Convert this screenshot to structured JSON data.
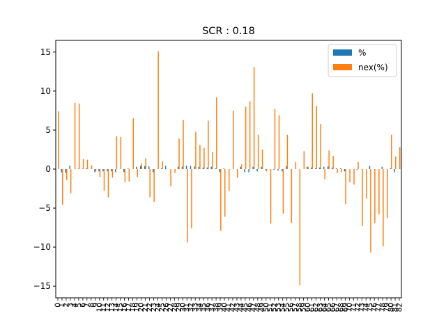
{
  "chart_data": {
    "type": "bar",
    "title": "SCR : 0.18",
    "xlabel": "",
    "ylabel": "",
    "ylim": [
      -16.5,
      16.5
    ],
    "yticks": [
      -15,
      -10,
      -5,
      0,
      5,
      10,
      15
    ],
    "grid": false,
    "legend_position": "top-right",
    "colors": {
      "pct": "#1f77b4",
      "nex": "#ff7f0e"
    },
    "categories": [
      0,
      1,
      2,
      3,
      4,
      5,
      6,
      7,
      8,
      9,
      10,
      11,
      12,
      13,
      14,
      15,
      16,
      17,
      18,
      19,
      20,
      21,
      22,
      23,
      24,
      25,
      26,
      27,
      28,
      29,
      30,
      31,
      32,
      33,
      34,
      35,
      36,
      37,
      38,
      39,
      40,
      41,
      42,
      43,
      44,
      45,
      46,
      47,
      48,
      49,
      50,
      51,
      52,
      53,
      54,
      55,
      56,
      57,
      58,
      59,
      60,
      61,
      62,
      63,
      64,
      65,
      66,
      67,
      68,
      69,
      70,
      71,
      72,
      73,
      74,
      75,
      76,
      77,
      78,
      79,
      80,
      81,
      82
    ],
    "series": [
      {
        "name": "%",
        "values": [
          0.0,
          -0.4,
          -0.5,
          0.45,
          0.0,
          0.05,
          0.05,
          0.1,
          0.0,
          -0.4,
          -0.3,
          -0.3,
          -0.3,
          -0.3,
          -0.4,
          0.0,
          -0.4,
          0.1,
          0.0,
          0.3,
          0.4,
          0.4,
          0.35,
          -0.4,
          0.0,
          0.1,
          0.4,
          0.0,
          0.0,
          0.3,
          0.3,
          0.45,
          0.4,
          0.35,
          0.3,
          0.2,
          0.2,
          0.3,
          0.1,
          -0.4,
          0.1,
          0.0,
          0.0,
          0.0,
          0.3,
          -0.4,
          -0.4,
          0.3,
          -0.3,
          0.3,
          -0.1,
          0.0,
          -0.1,
          -0.2,
          -0.3,
          0.4,
          0.0,
          0.0,
          0.0,
          0.0,
          0.3,
          0.2,
          0.1,
          0.2,
          0.3,
          0.35,
          0.2,
          0.1,
          0.1,
          -0.3,
          0.0,
          0.0,
          -0.1,
          0.0,
          0.0,
          0.4,
          0.0,
          0.0,
          0.3,
          0.0,
          0.1,
          -0.4,
          0.0
        ]
      },
      {
        "name": "nex(%)",
        "values": [
          7.4,
          -4.6,
          -1.4,
          -3.1,
          8.5,
          8.4,
          1.3,
          1.2,
          0.5,
          -0.3,
          -1.0,
          -2.8,
          -3.6,
          -1.1,
          4.2,
          4.1,
          -1.7,
          -1.6,
          6.5,
          -1.0,
          0.7,
          1.4,
          -3.6,
          -4.2,
          15.1,
          1.0,
          0.0,
          -2.2,
          -0.5,
          3.9,
          6.3,
          -9.4,
          -7.6,
          4.8,
          3.1,
          2.7,
          6.2,
          2.2,
          9.2,
          -7.9,
          -6.1,
          -2.8,
          7.5,
          -1.1,
          0.6,
          8.0,
          8.7,
          13.1,
          4.4,
          2.5,
          -0.3,
          -7.0,
          7.7,
          6.9,
          -5.7,
          4.4,
          -6.9,
          0.9,
          -14.9,
          2.3,
          0.3,
          9.7,
          8.1,
          5.8,
          -1.3,
          2.4,
          1.7,
          -0.5,
          -0.4,
          -4.5,
          -1.7,
          -2.0,
          0.9,
          -7.3,
          -3.8,
          -10.7,
          -6.9,
          -5.8,
          -9.9,
          -6.3,
          4.4,
          1.6,
          2.8
        ]
      }
    ]
  }
}
